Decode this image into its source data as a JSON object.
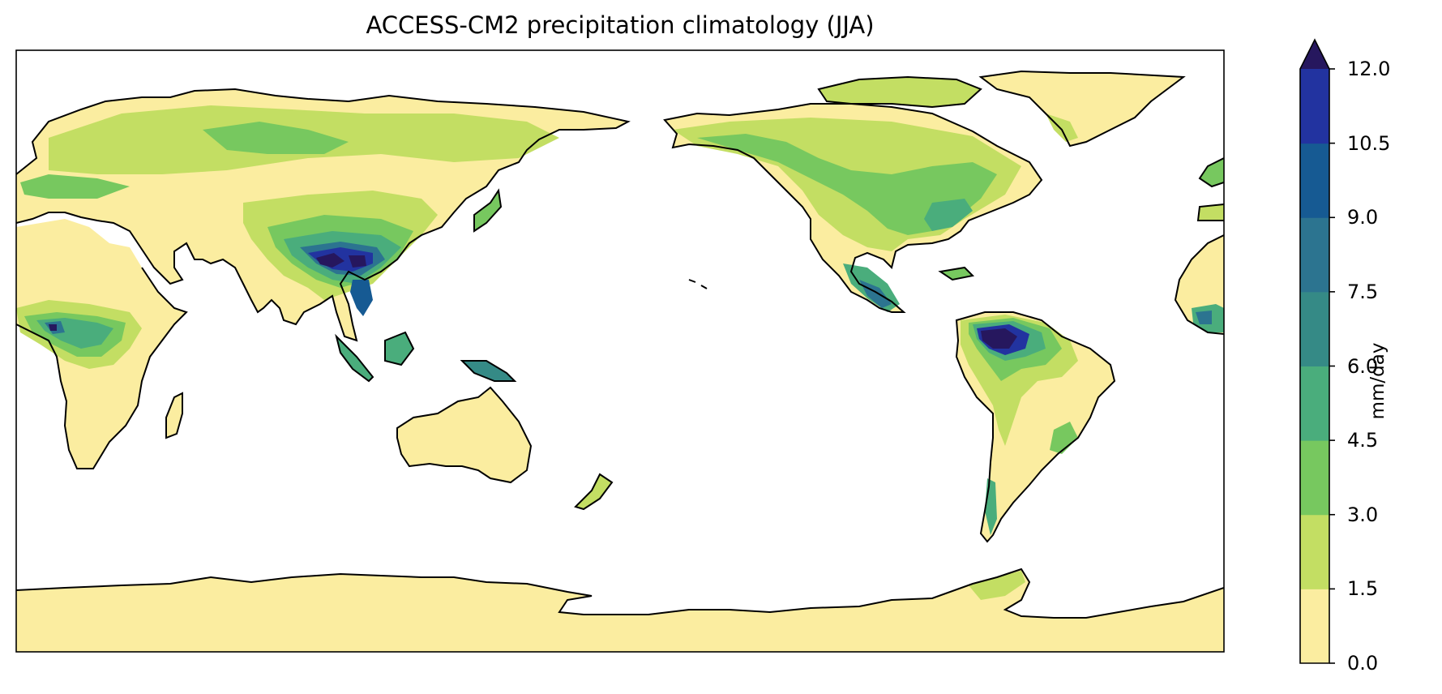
{
  "title": "ACCESS-CM2 precipitation climatology (JJA)",
  "colorbar": {
    "label": "mm/day",
    "ticks": [
      "0.0",
      "1.5",
      "3.0",
      "4.5",
      "6.0",
      "7.5",
      "9.0",
      "10.5",
      "12.0"
    ],
    "colors": [
      "#fbeda0",
      "#c3de63",
      "#77c85f",
      "#4aad7c",
      "#358a86",
      "#2c7490",
      "#165a93",
      "#2233a0",
      "#26175e"
    ],
    "extend": "max",
    "range": [
      0,
      12
    ]
  },
  "map": {
    "projection": "PlateCarree",
    "central_longitude": 180,
    "ocean_color": "#ffffff",
    "coastline_color": "#000000",
    "variable": "precipitation",
    "season": "JJA"
  }
}
